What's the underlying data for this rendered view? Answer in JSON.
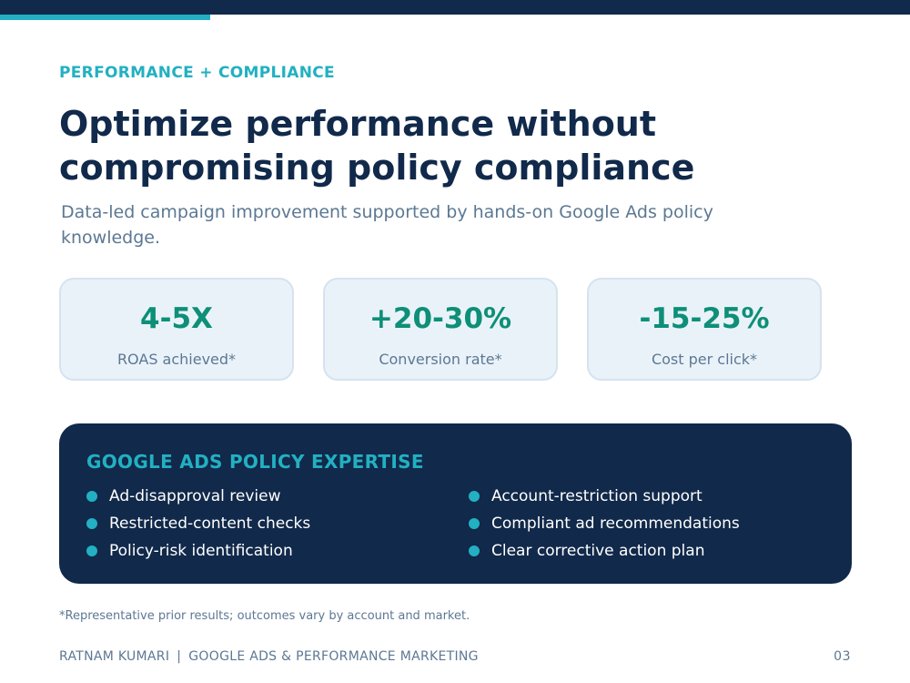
{
  "header": {
    "eyebrow": "PERFORMANCE + COMPLIANCE",
    "title_line1": "Optimize performance without",
    "title_line2": "compromising policy compliance",
    "subtitle": "Data-led campaign improvement supported by hands-on Google Ads policy knowledge."
  },
  "metrics": [
    {
      "value": "4-5X",
      "label": "ROAS achieved*"
    },
    {
      "value": "+20-30%",
      "label": "Conversion rate*"
    },
    {
      "value": "-15-25%",
      "label": "Cost per click*"
    }
  ],
  "policy": {
    "heading": "GOOGLE ADS POLICY EXPERTISE",
    "left_items": [
      "Ad-disapproval review",
      "Restricted-content checks",
      "Policy-risk identification"
    ],
    "right_items": [
      "Account-restriction support",
      "Compliant ad recommendations",
      "Clear corrective action plan"
    ]
  },
  "footnote": "*Representative prior results; outcomes vary by account and market.",
  "footer": {
    "author": "RATNAM KUMARI",
    "separator": "|",
    "topic": "GOOGLE ADS & PERFORMANCE MARKETING",
    "page_number": "03"
  },
  "colors": {
    "navy": "#11294a",
    "teal_accent": "#22b0c2",
    "metric_green": "#0d8f78",
    "muted_text": "#5c7893",
    "card_background": "#eaf2f9"
  }
}
